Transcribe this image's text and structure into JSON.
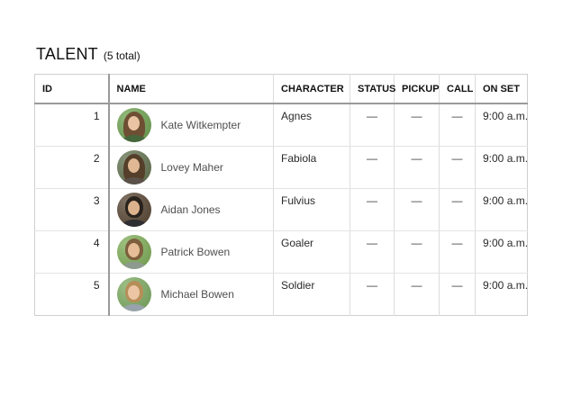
{
  "page": {
    "title": "TALENT",
    "count_label": "(5 total)"
  },
  "table": {
    "headers": [
      "ID",
      "NAME",
      "CHARACTER",
      "STATUS",
      "PICKUP",
      "CALL",
      "ON SET"
    ],
    "rows": [
      {
        "id": "1",
        "name": "Kate Witkempter",
        "character": "Agnes",
        "status": "—",
        "pickup": "—",
        "call": "—",
        "on_set": "9:00 a.m.",
        "avatar": {
          "bg": "#6ba04e",
          "hair": "#6e4f33",
          "skin": "#eac3a2",
          "shirt": "#46663c",
          "hair_len": "long"
        }
      },
      {
        "id": "2",
        "name": "Lovey Maher",
        "character": "Fabiola",
        "status": "—",
        "pickup": "—",
        "call": "—",
        "on_set": "9:00 a.m.",
        "avatar": {
          "bg": "#5f6f4c",
          "hair": "#553f2a",
          "skin": "#e0b894",
          "shirt": "#5a5148",
          "hair_len": "long"
        }
      },
      {
        "id": "3",
        "name": "Aidan Jones",
        "character": "Fulvius",
        "status": "—",
        "pickup": "—",
        "call": "—",
        "on_set": "9:00 a.m.",
        "avatar": {
          "bg": "#54422f",
          "hair": "#2a231d",
          "skin": "#dcb38c",
          "shirt": "#2e2e33",
          "hair_len": "short"
        }
      },
      {
        "id": "4",
        "name": "Patrick Bowen",
        "character": "Goaler",
        "status": "—",
        "pickup": "—",
        "call": "—",
        "on_set": "9:00 a.m.",
        "avatar": {
          "bg": "#7cab54",
          "hair": "#7d5f3d",
          "skin": "#e6bd96",
          "shirt": "#8d9a8f",
          "hair_len": "short"
        }
      },
      {
        "id": "5",
        "name": "Michael Bowen",
        "character": "Soldier",
        "status": "—",
        "pickup": "—",
        "call": "—",
        "on_set": "9:00 a.m.",
        "avatar": {
          "bg": "#79a85d",
          "hair": "#b68e58",
          "skin": "#ecc6a4",
          "shirt": "#97a2ab",
          "hair_len": "short"
        }
      }
    ]
  }
}
